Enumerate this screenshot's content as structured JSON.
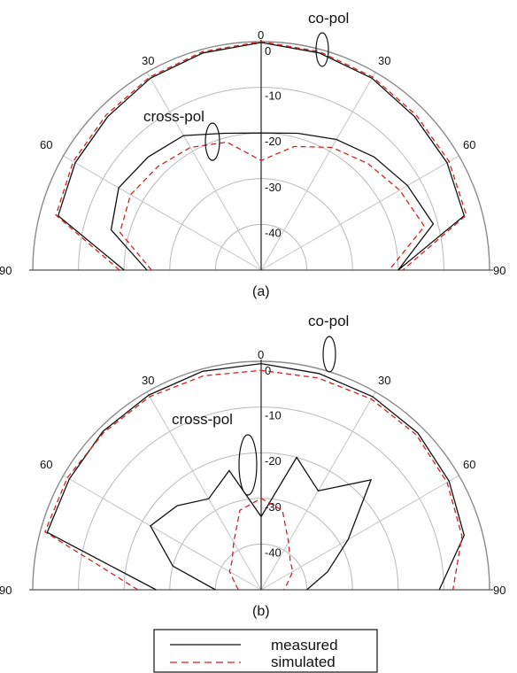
{
  "chart_data": [
    {
      "type": "polar",
      "caption": "(a)",
      "rlim": [
        -50,
        0
      ],
      "r_ticks": [
        "0",
        "-10",
        "-20",
        "-30",
        "-40"
      ],
      "angle_labels_left": [
        "90",
        "60",
        "30"
      ],
      "angle_labels_right": [
        "30",
        "60",
        "90"
      ],
      "annotations": [
        "co-pol",
        "cross-pol"
      ],
      "angles_deg": [
        -90,
        -75,
        -60,
        -45,
        -30,
        -15,
        0,
        15,
        30,
        45,
        60,
        75,
        90
      ],
      "series": [
        {
          "name": "measured",
          "group": "co-pol",
          "values": [
            -20,
            -4,
            -3,
            -2.5,
            -1.5,
            -0.8,
            -0.2,
            -0.8,
            -1.5,
            -2.5,
            -3,
            -4,
            -20
          ]
        },
        {
          "name": "simulated",
          "group": "co-pol",
          "values": [
            -19,
            -3.5,
            -2.5,
            -2,
            -1.2,
            -0.5,
            0,
            -0.5,
            -1.2,
            -2,
            -2.5,
            -3.5,
            -19
          ]
        },
        {
          "name": "measured",
          "group": "cross-pol",
          "values": [
            -25,
            -16,
            -14,
            -15,
            -16,
            -19,
            -20,
            -19,
            -17,
            -15,
            -13,
            -11,
            -20
          ]
        },
        {
          "name": "simulated",
          "group": "cross-pol",
          "values": [
            -26,
            -18,
            -17,
            -18,
            -19,
            -21,
            -26,
            -22,
            -19,
            -17,
            -15,
            -13,
            -22
          ]
        }
      ]
    },
    {
      "type": "polar",
      "caption": "(b)",
      "rlim": [
        -50,
        0
      ],
      "r_ticks": [
        "0",
        "-10",
        "-20",
        "-30",
        "-40"
      ],
      "angle_labels_left": [
        "90",
        "60",
        "30"
      ],
      "angle_labels_right": [
        "30",
        "60",
        "90"
      ],
      "annotations": [
        "co-pol",
        "cross-pol"
      ],
      "angles_deg": [
        -90,
        -75,
        -60,
        -45,
        -30,
        -15,
        0,
        15,
        30,
        45,
        60,
        75,
        90
      ],
      "series": [
        {
          "name": "measured",
          "group": "co-pol",
          "values": [
            -27,
            -1.5,
            -1.5,
            -1,
            -0.8,
            -0.5,
            -0.5,
            -1,
            -1.2,
            -1.5,
            -2.5,
            -4,
            -11
          ]
        },
        {
          "name": "simulated",
          "group": "co-pol",
          "values": [
            -23,
            -1,
            -1,
            -1.3,
            -1.2,
            -1.5,
            -2,
            -2,
            -1.8,
            -2,
            -3,
            -4.5,
            -8
          ]
        },
        {
          "name": "measured",
          "group": "cross-pol",
          "values": [
            -40,
            -30,
            -22,
            -24,
            -27,
            -23,
            -34,
            -20,
            -25,
            -16,
            -28,
            -35,
            -40
          ]
        },
        {
          "name": "simulated",
          "group": "cross-pol",
          "values": [
            -45,
            -44,
            -42,
            -41,
            -38,
            -32,
            -30,
            -32,
            -38,
            -41,
            -42,
            -44,
            -45
          ]
        }
      ]
    }
  ],
  "legend": {
    "items": [
      {
        "label": "measured",
        "color": "#111111",
        "style": "solid"
      },
      {
        "label": "simulated",
        "color": "#d42020",
        "style": "dashed"
      }
    ]
  }
}
